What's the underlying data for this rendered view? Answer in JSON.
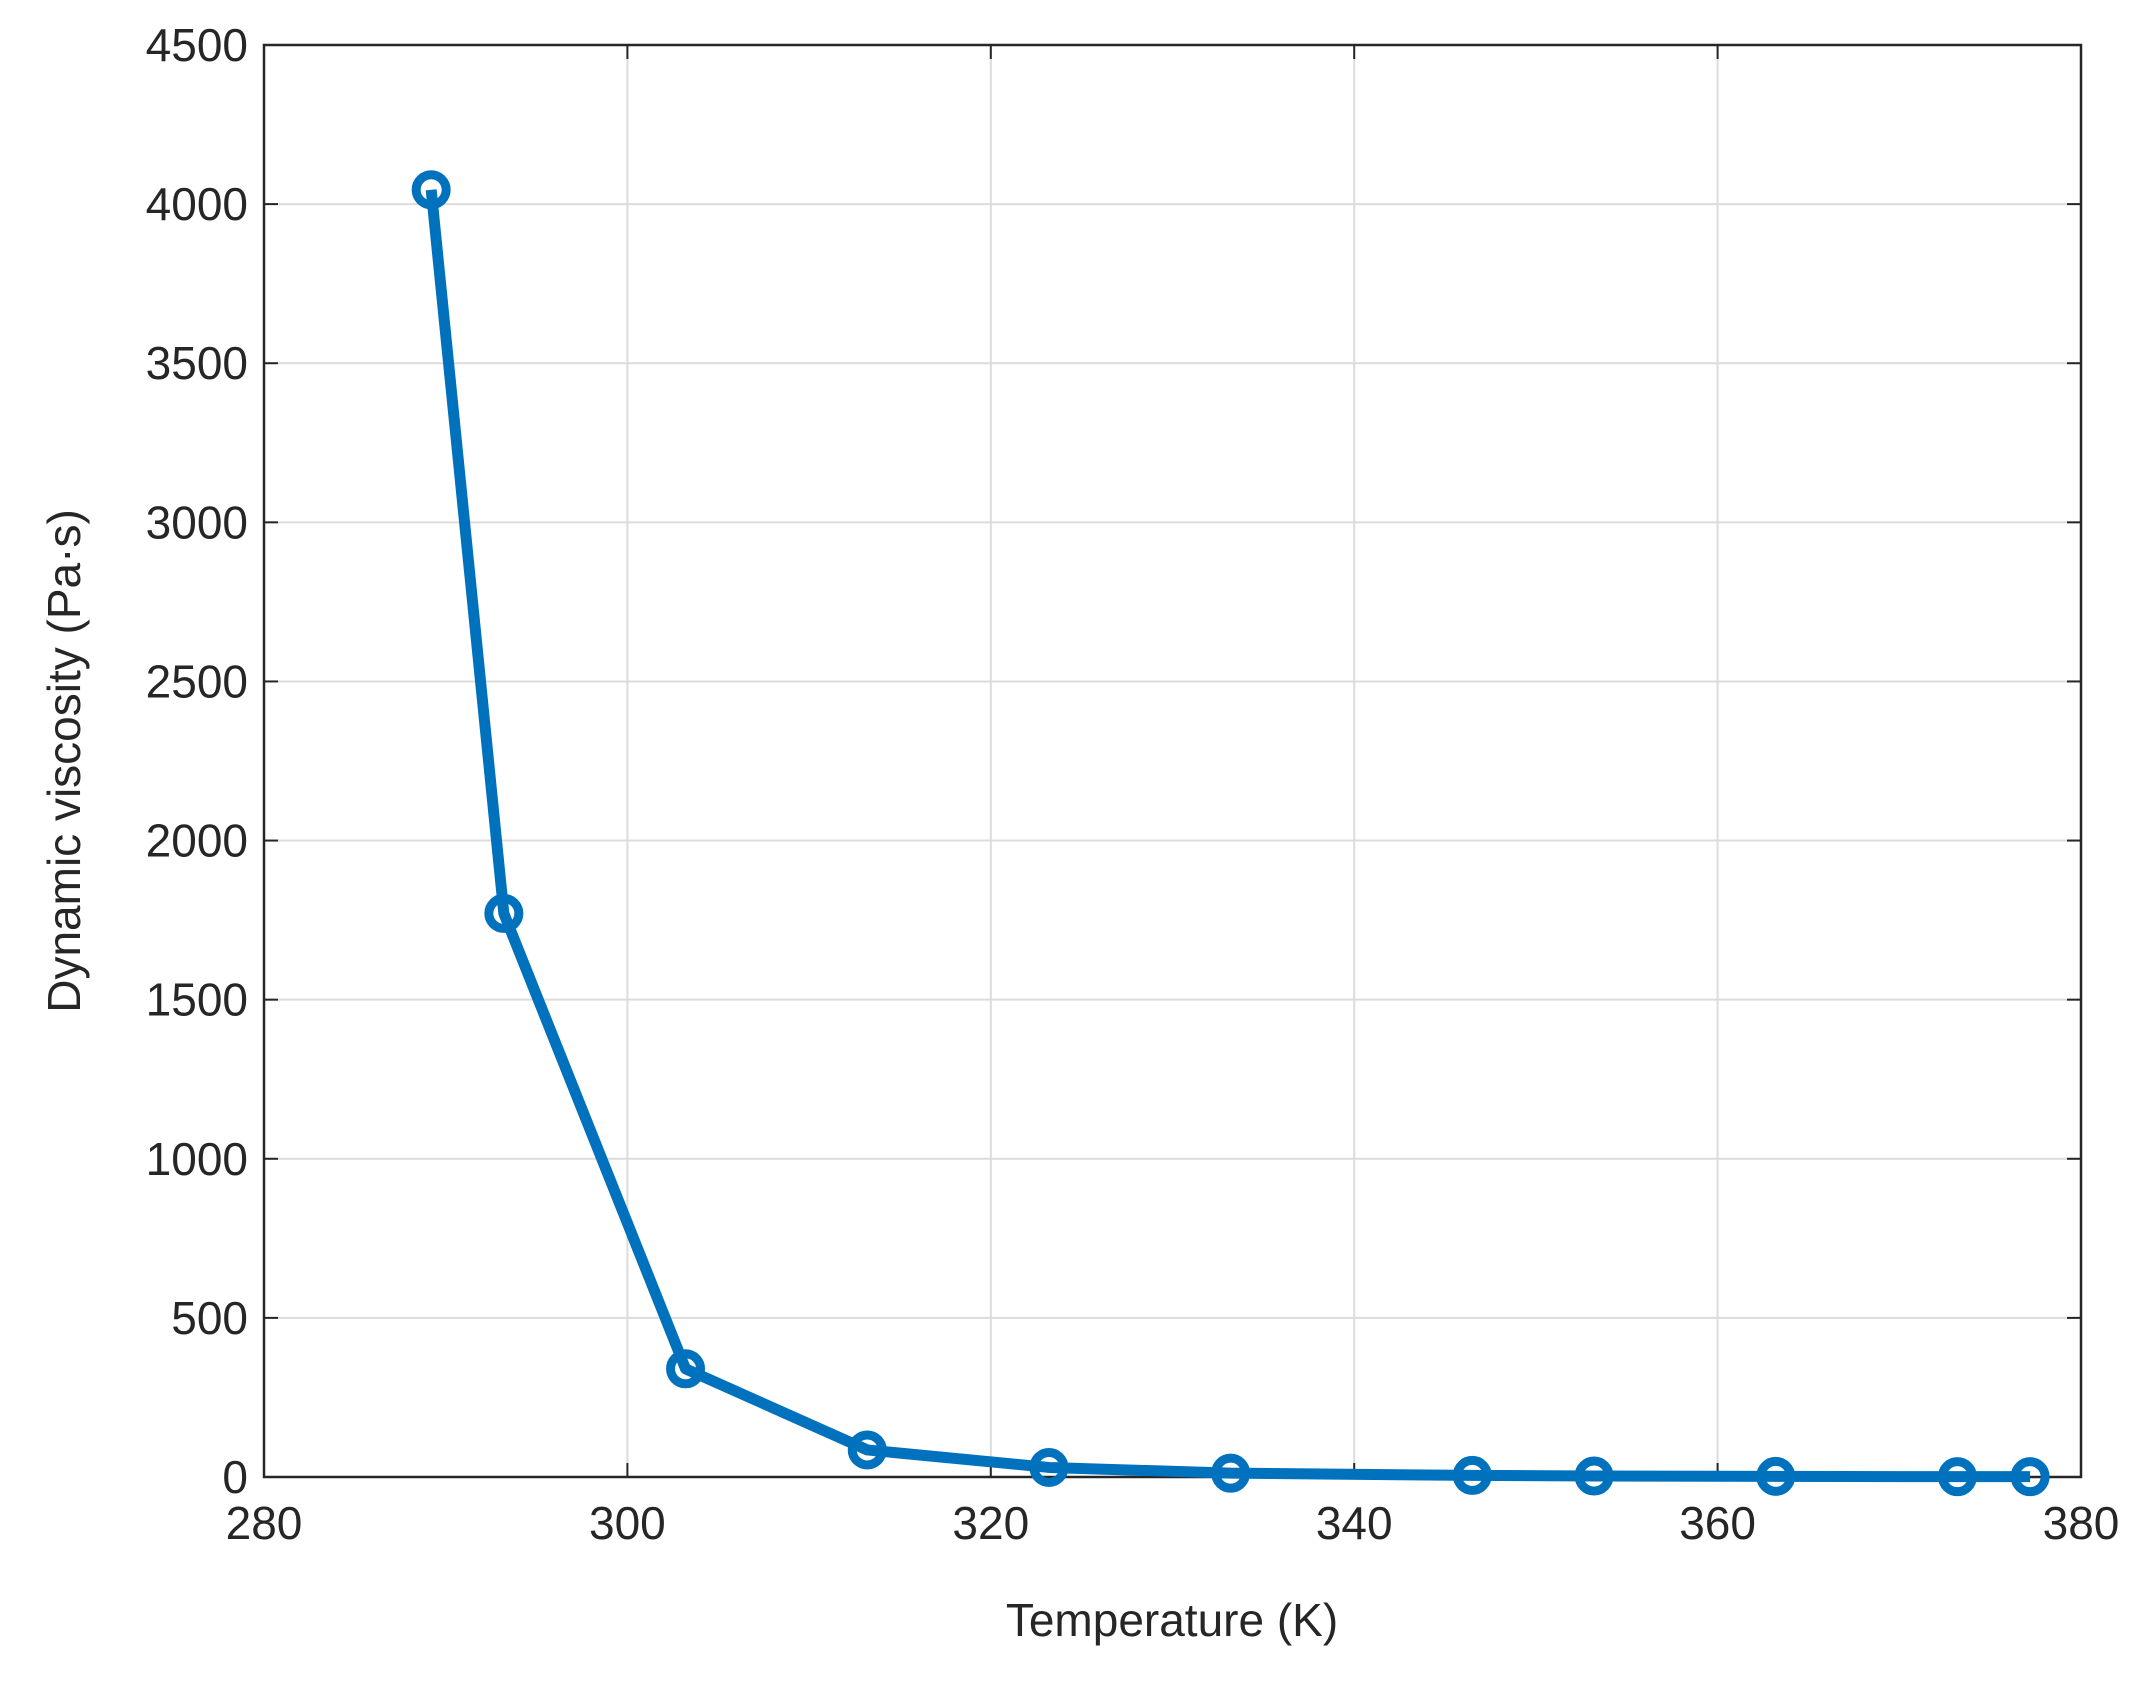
{
  "chart_data": {
    "type": "line",
    "x_label": "Temperature (K)",
    "y_label": "Dynamic viscosity (Pa·s)",
    "x": [
      289.2,
      293.2,
      303.2,
      313.2,
      323.2,
      333.2,
      346.5,
      353.2,
      363.2,
      373.2,
      377.2
    ],
    "series": [
      {
        "name": "Dynamic viscosity",
        "color": "#0072bd",
        "values": [
          4045,
          1771,
          340,
          85,
          30,
          12,
          5,
          3,
          2,
          1,
          1
        ]
      }
    ],
    "xlim": [
      280,
      380
    ],
    "xticks": [
      280,
      300,
      320,
      340,
      360,
      380
    ],
    "ylim": [
      0,
      4500
    ],
    "yticks": [
      0,
      500,
      1000,
      1500,
      2000,
      2500,
      3000,
      3500,
      4000,
      4500
    ],
    "grid": true
  }
}
